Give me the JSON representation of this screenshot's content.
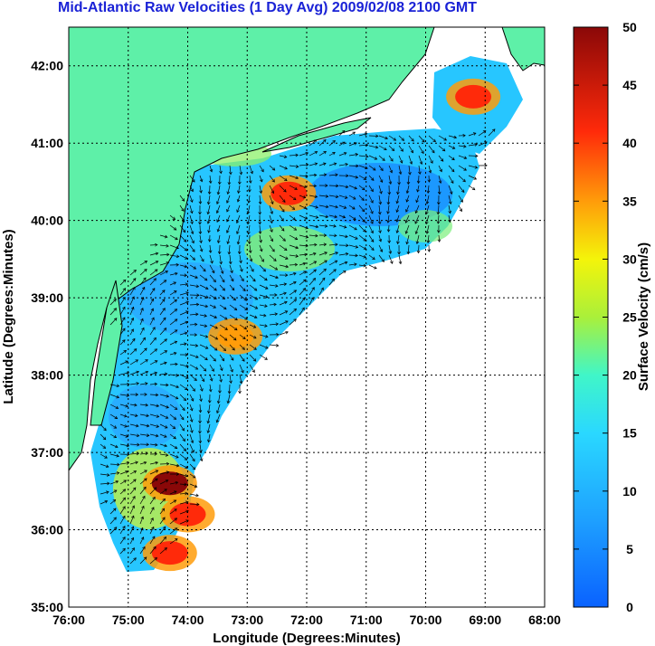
{
  "title": "Mid-Atlantic Raw Velocities (1 Day Avg) 2009/02/08 2100 GMT",
  "axes": {
    "xlabel": "Longitude (Degrees:Minutes)",
    "ylabel": "Latitude (Degrees:Minutes)",
    "x_ticks": [
      "76:00",
      "75:00",
      "74:00",
      "73:00",
      "72:00",
      "71:00",
      "70:00",
      "69:00",
      "68:00"
    ],
    "y_ticks": [
      "42:00",
      "41:00",
      "40:00",
      "39:00",
      "38:00",
      "37:00",
      "36:00",
      "35:00"
    ]
  },
  "colorbar": {
    "label": "Surface Velocity (cm/s)",
    "ticks": [
      "50",
      "45",
      "40",
      "35",
      "30",
      "25",
      "20",
      "15",
      "10",
      "5",
      "0"
    ],
    "min": 0,
    "max": 50
  },
  "colors": {
    "land": "#5ef0a8",
    "title": "#1a22d6",
    "arrow": "#000000",
    "grid": "#000000"
  },
  "chart_data": {
    "type": "heatmap",
    "xlim": [
      -76,
      -68
    ],
    "ylim": [
      35,
      42.5
    ],
    "grid": true,
    "hotspots": [
      {
        "lon": -72.3,
        "lat": 40.35,
        "speed": 47
      },
      {
        "lon": -73.2,
        "lat": 38.5,
        "speed": 40
      },
      {
        "lon": -69.2,
        "lat": 41.6,
        "speed": 47
      },
      {
        "lon": -74.3,
        "lat": 36.6,
        "speed": 50
      },
      {
        "lon": -74.0,
        "lat": 36.2,
        "speed": 45
      },
      {
        "lon": -74.3,
        "lat": 35.7,
        "speed": 45
      }
    ]
  }
}
